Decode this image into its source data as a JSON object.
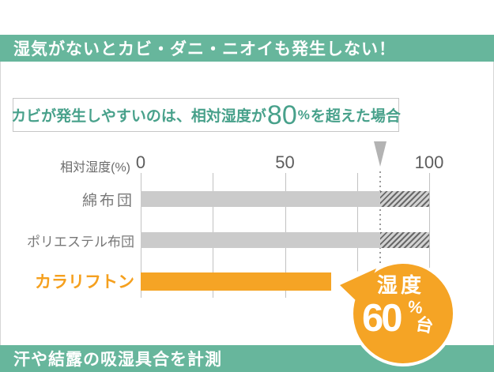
{
  "colors": {
    "banner_teal": "#67b69c",
    "headline_text_teal": "#48a18b",
    "bar_gray": "#cbcbcb",
    "brand_orange": "#f5a425",
    "label_gray": "#787878",
    "threshold_gray": "#b3b3b3"
  },
  "top_banner": {
    "text": "湿気がないとカビ・ダニ・ニオイも発生しない！"
  },
  "headline": {
    "prefix": "カビが発生しやすいのは、相対湿度が",
    "big": "80",
    "unit": "%",
    "suffix": "を超えた場合"
  },
  "chart_data": {
    "type": "bar",
    "orientation": "horizontal",
    "axis_title": "相対湿度(%)",
    "xlim": [
      0,
      100
    ],
    "ticks": [
      0,
      50,
      100
    ],
    "tick_labels": [
      "0",
      "50",
      "100"
    ],
    "gridlines": [
      0,
      25,
      50,
      75,
      100
    ],
    "threshold": {
      "value": 80,
      "display_value": 83,
      "marker": "down-arrow",
      "line_style": "dotted"
    },
    "categories": [
      "綿布団",
      "ポリエステル布団",
      "カラリフトン"
    ],
    "rows": [
      {
        "label": "綿布団",
        "value": 100,
        "color": "#cbcbcb",
        "hatch_above_threshold": true
      },
      {
        "label": "ポリエステル布団",
        "value": 100,
        "color": "#cbcbcb",
        "hatch_above_threshold": true
      },
      {
        "label": "カラリフトン",
        "value": 66,
        "color": "#f5a425",
        "hatch_above_threshold": false
      }
    ],
    "annotation_bubble": "湿度60%台",
    "legend": "none",
    "grid": "vertical-only"
  },
  "bubble": {
    "line1": "湿度",
    "big": "60",
    "unit": "%",
    "suffix": "台"
  },
  "bottom_banner": {
    "text": "汗や結露の吸湿具合を計測"
  }
}
